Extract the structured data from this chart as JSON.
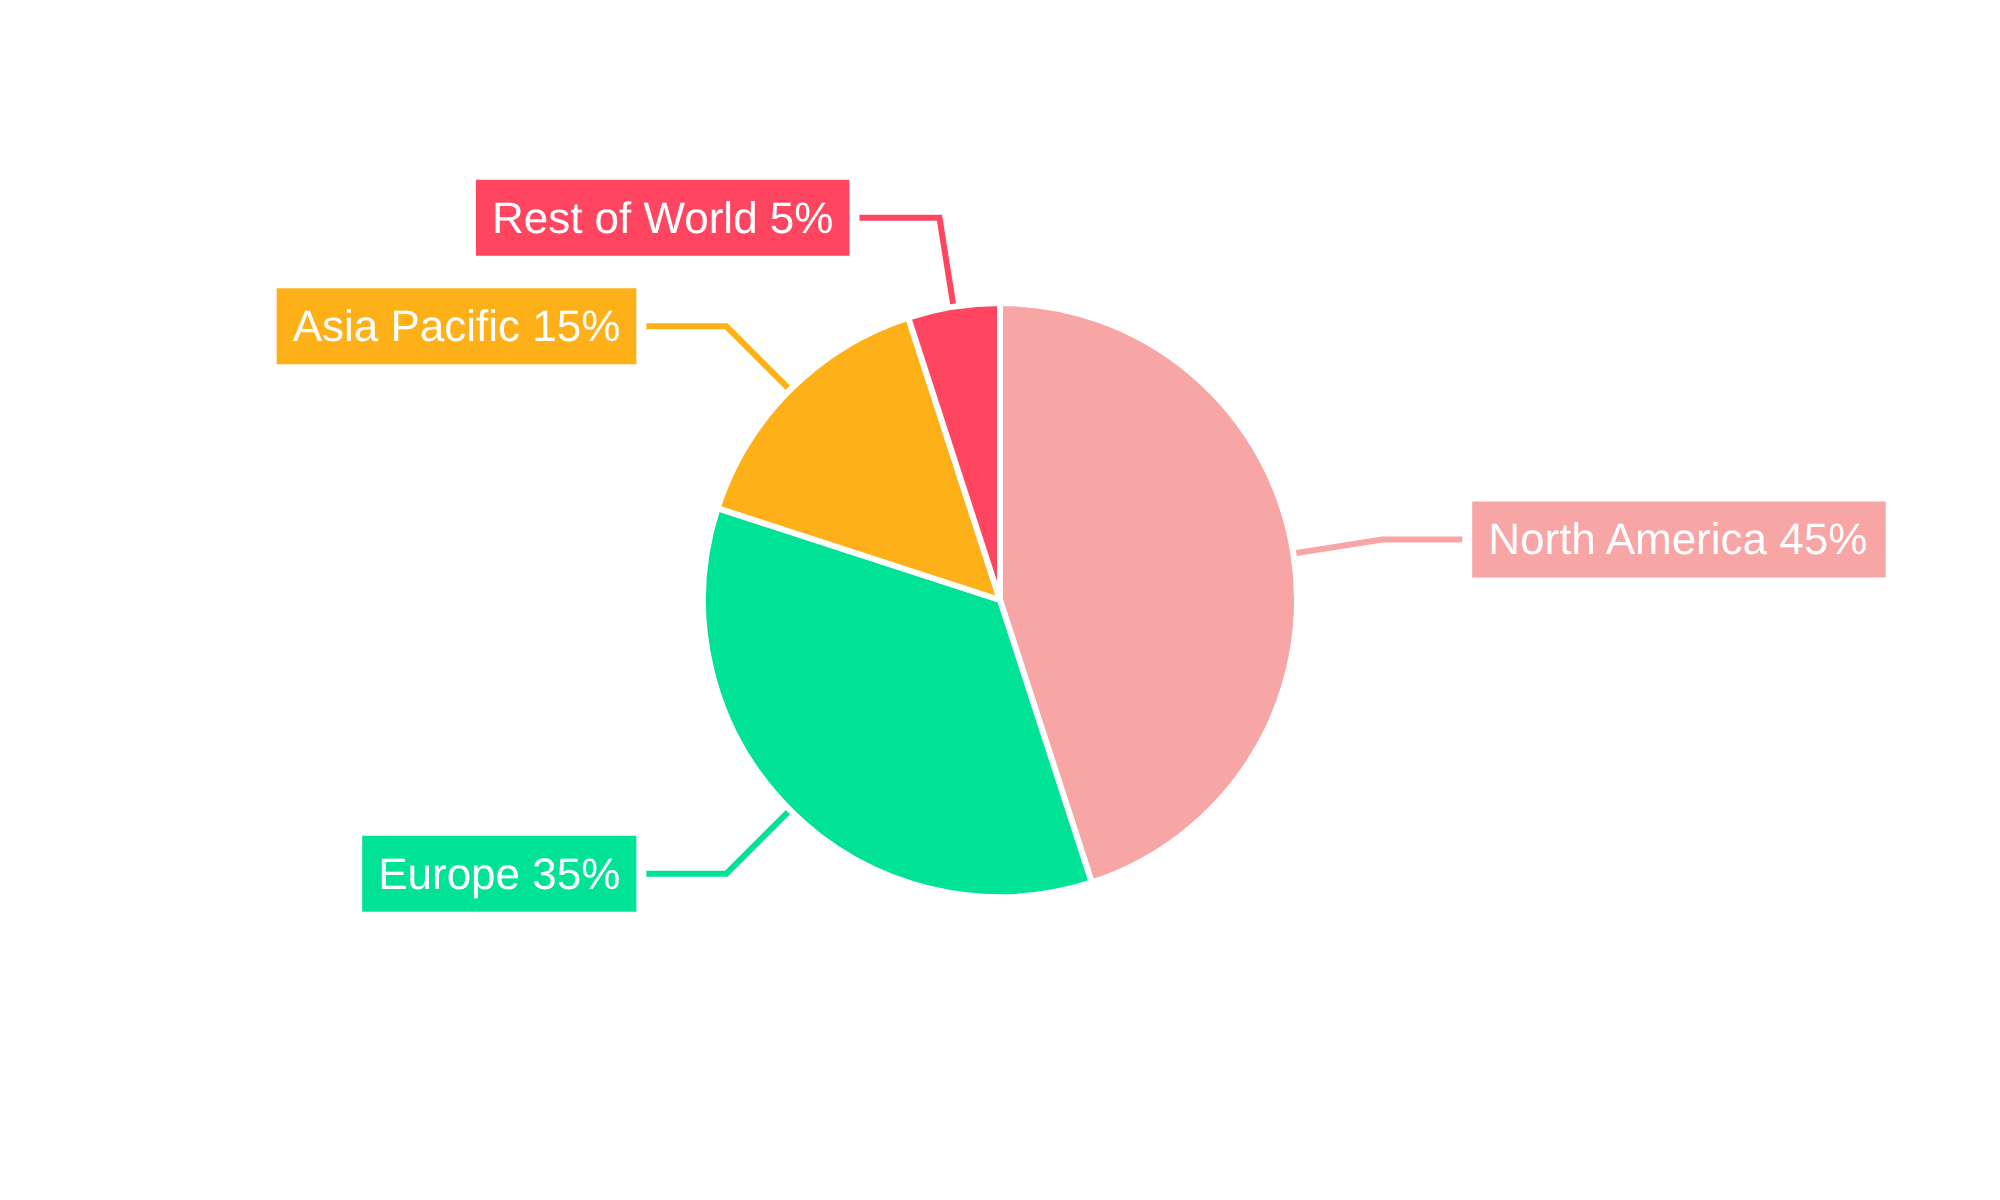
{
  "chart_data": {
    "type": "pie",
    "categories": [
      "North America",
      "Europe",
      "Asia Pacific",
      "Rest of World"
    ],
    "values": [
      45,
      35,
      15,
      5
    ],
    "value_labels": [
      "45%",
      "35%",
      "15%",
      "5%"
    ],
    "colors": [
      "#f8a5a5",
      "#00e396",
      "#feb019",
      "#ff4560"
    ]
  }
}
